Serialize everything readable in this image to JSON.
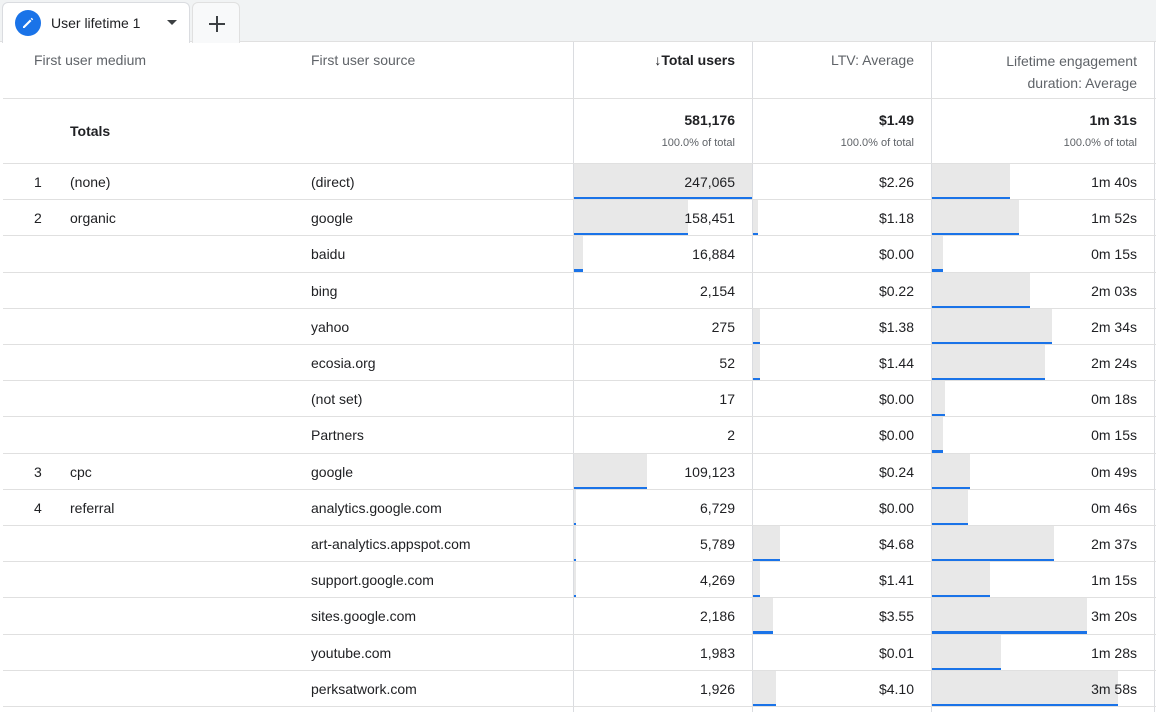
{
  "tab": {
    "label": "User lifetime 1",
    "add_icon": "plus-icon"
  },
  "columns": {
    "medium": "First user medium",
    "source": "First user source",
    "users": "Total users",
    "ltv": "LTV: Average",
    "engagement_line1": "Lifetime engagement",
    "engagement_line2": "duration: Average"
  },
  "totals": {
    "label": "Totals",
    "users": "581,176",
    "users_pct": "100.0% of total",
    "ltv": "$1.49",
    "ltv_pct": "100.0% of total",
    "engagement": "1m 31s",
    "engagement_pct": "100.0% of total"
  },
  "rows": [
    {
      "idx": "1",
      "medium": "(none)",
      "source": "(direct)",
      "users": "247,065",
      "ltv": "$2.26",
      "engagement": "1m 40s",
      "users_frac": 1.0,
      "ltv_frac": 0.0,
      "eng_frac": 0.35
    },
    {
      "idx": "2",
      "medium": "organic",
      "source": "google",
      "users": "158,451",
      "ltv": "$1.18",
      "engagement": "1m 52s",
      "users_frac": 0.64,
      "ltv_frac": 0.03,
      "eng_frac": 0.39
    },
    {
      "idx": "",
      "medium": "",
      "source": "baidu",
      "users": "16,884",
      "ltv": "$0.00",
      "engagement": "0m 15s",
      "users_frac": 0.05,
      "ltv_frac": 0.0,
      "eng_frac": 0.05
    },
    {
      "idx": "",
      "medium": "",
      "source": "bing",
      "users": "2,154",
      "ltv": "$0.22",
      "engagement": "2m 03s",
      "users_frac": 0.0,
      "ltv_frac": 0.0,
      "eng_frac": 0.44
    },
    {
      "idx": "",
      "medium": "",
      "source": "yahoo",
      "users": "275",
      "ltv": "$1.38",
      "engagement": "2m 34s",
      "users_frac": 0.0,
      "ltv_frac": 0.04,
      "eng_frac": 0.54
    },
    {
      "idx": "",
      "medium": "",
      "source": "ecosia.org",
      "users": "52",
      "ltv": "$1.44",
      "engagement": "2m 24s",
      "users_frac": 0.0,
      "ltv_frac": 0.04,
      "eng_frac": 0.51
    },
    {
      "idx": "",
      "medium": "",
      "source": "(not set)",
      "users": "17",
      "ltv": "$0.00",
      "engagement": "0m 18s",
      "users_frac": 0.0,
      "ltv_frac": 0.0,
      "eng_frac": 0.06
    },
    {
      "idx": "",
      "medium": "",
      "source": "Partners",
      "users": "2",
      "ltv": "$0.00",
      "engagement": "0m 15s",
      "users_frac": 0.0,
      "ltv_frac": 0.0,
      "eng_frac": 0.05
    },
    {
      "idx": "3",
      "medium": "cpc",
      "source": "google",
      "users": "109,123",
      "ltv": "$0.24",
      "engagement": "0m 49s",
      "users_frac": 0.41,
      "ltv_frac": 0.0,
      "eng_frac": 0.17
    },
    {
      "idx": "4",
      "medium": "referral",
      "source": "analytics.google.com",
      "users": "6,729",
      "ltv": "$0.00",
      "engagement": "0m 46s",
      "users_frac": 0.01,
      "ltv_frac": 0.0,
      "eng_frac": 0.16
    },
    {
      "idx": "",
      "medium": "",
      "source": "art-analytics.appspot.com",
      "users": "5,789",
      "ltv": "$4.68",
      "engagement": "2m 37s",
      "users_frac": 0.01,
      "ltv_frac": 0.15,
      "eng_frac": 0.55
    },
    {
      "idx": "",
      "medium": "",
      "source": "support.google.com",
      "users": "4,269",
      "ltv": "$1.41",
      "engagement": "1m 15s",
      "users_frac": 0.01,
      "ltv_frac": 0.04,
      "eng_frac": 0.26
    },
    {
      "idx": "",
      "medium": "",
      "source": "sites.google.com",
      "users": "2,186",
      "ltv": "$3.55",
      "engagement": "3m 20s",
      "users_frac": 0.0,
      "ltv_frac": 0.11,
      "eng_frac": 0.7
    },
    {
      "idx": "",
      "medium": "",
      "source": "youtube.com",
      "users": "1,983",
      "ltv": "$0.01",
      "engagement": "1m 28s",
      "users_frac": 0.0,
      "ltv_frac": 0.0,
      "eng_frac": 0.31
    },
    {
      "idx": "",
      "medium": "",
      "source": "perksatwork.com",
      "users": "1,926",
      "ltv": "$4.10",
      "engagement": "3m 58s",
      "users_frac": 0.0,
      "ltv_frac": 0.13,
      "eng_frac": 0.84
    }
  ]
}
